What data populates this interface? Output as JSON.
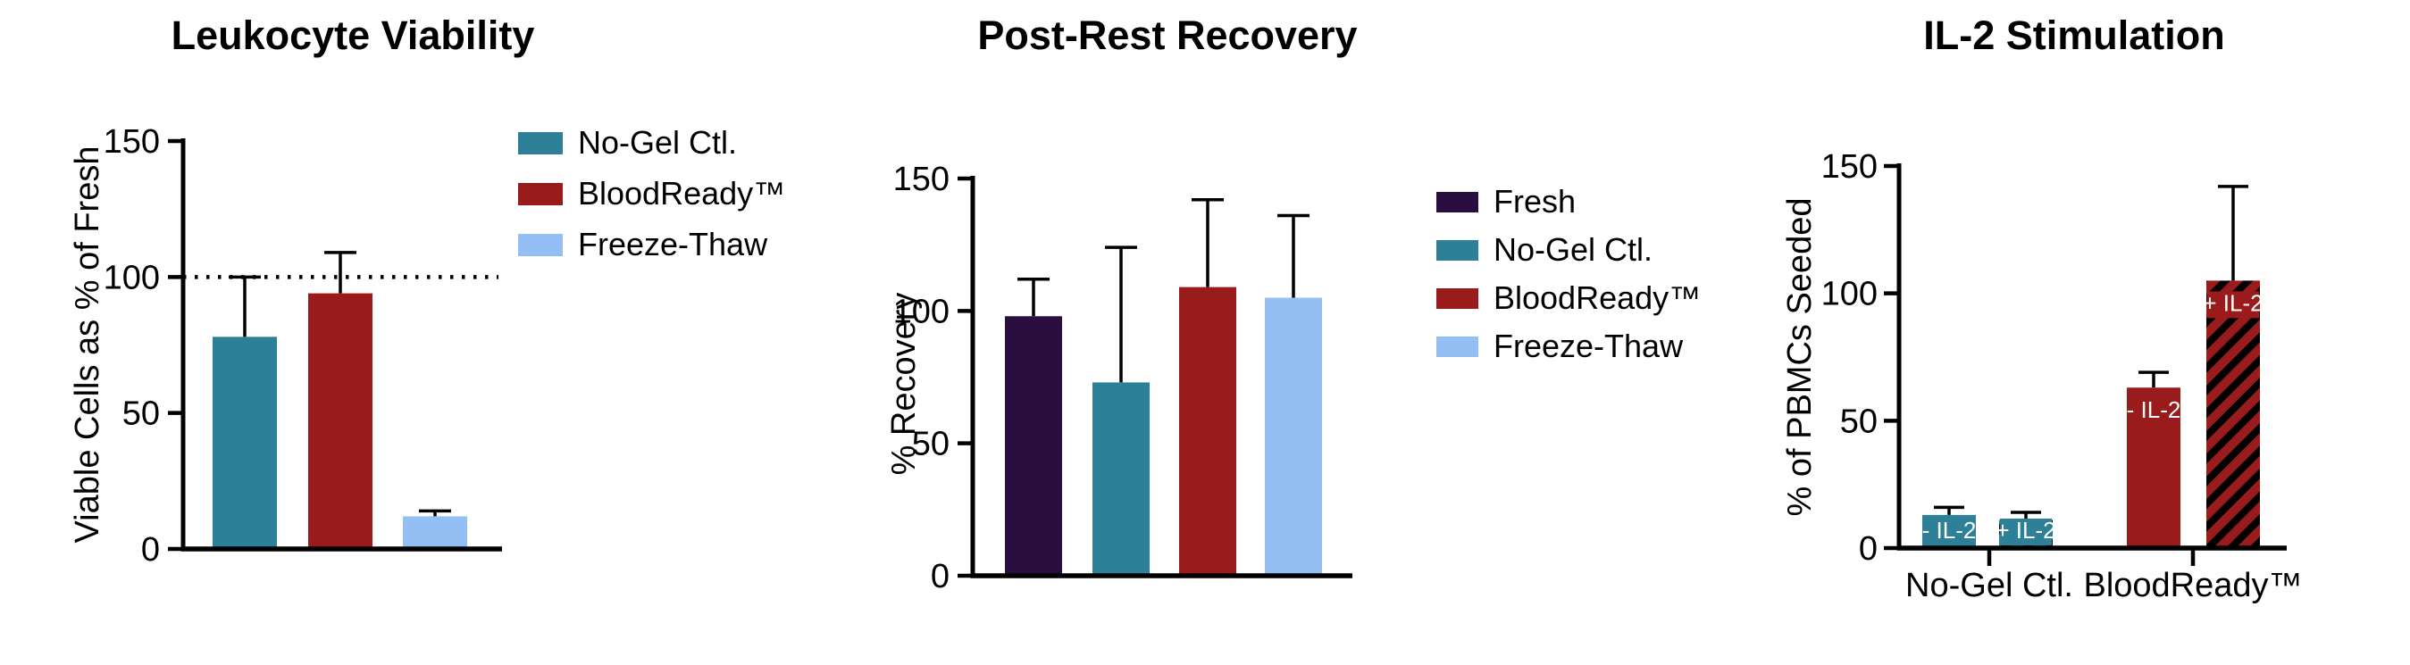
{
  "figure": {
    "background": "#ffffff"
  },
  "palette": {
    "teal": "#2e8099",
    "red": "#9a1b1b",
    "light_blue": "#93bff5",
    "purple": "#2a0e40",
    "axis_black": "#000000",
    "bar_label_text": "#ffffff"
  },
  "chart_data": [
    {
      "type": "bar",
      "title": "Leukocyte Viability",
      "ylabel": "Viable Cells as % of Fresh",
      "ylim": [
        0,
        150
      ],
      "yticks": [
        0,
        50,
        100,
        150
      ],
      "grid": false,
      "reference_line_y": 100,
      "categories": [
        "No-Gel Ctl.",
        "BloodReady™",
        "Freeze-Thaw"
      ],
      "bars": [
        {
          "label": "No-Gel Ctl.",
          "value": 78,
          "error_up": 22,
          "color": "teal",
          "hatch": false
        },
        {
          "label": "BloodReady™",
          "value": 94,
          "error_up": 15,
          "color": "red",
          "hatch": false
        },
        {
          "label": "Freeze-Thaw",
          "value": 12,
          "error_up": 2,
          "color": "light_blue",
          "hatch": false
        }
      ],
      "legend": [
        {
          "label": "No-Gel Ctl.",
          "color": "teal"
        },
        {
          "label": "BloodReady™",
          "color": "red"
        },
        {
          "label": "Freeze-Thaw",
          "color": "light_blue"
        }
      ],
      "legend_position": "right"
    },
    {
      "type": "bar",
      "title": "Post-Rest Recovery",
      "ylabel": "% Recovery",
      "ylim": [
        0,
        150
      ],
      "yticks": [
        0,
        50,
        100,
        150
      ],
      "grid": false,
      "categories": [
        "Fresh",
        "No-Gel Ctl.",
        "BloodReady™",
        "Freeze-Thaw"
      ],
      "bars": [
        {
          "label": "Fresh",
          "value": 98,
          "error_up": 14,
          "color": "purple",
          "hatch": false
        },
        {
          "label": "No-Gel Ctl.",
          "value": 73,
          "error_up": 51,
          "color": "teal",
          "hatch": false
        },
        {
          "label": "BloodReady™",
          "value": 109,
          "error_up": 33,
          "color": "red",
          "hatch": false
        },
        {
          "label": "Freeze-Thaw",
          "value": 105,
          "error_up": 31,
          "color": "light_blue",
          "hatch": false
        }
      ],
      "legend": [
        {
          "label": "Fresh",
          "color": "purple"
        },
        {
          "label": "No-Gel Ctl.",
          "color": "teal"
        },
        {
          "label": "BloodReady™",
          "color": "red"
        },
        {
          "label": "Freeze-Thaw",
          "color": "light_blue"
        }
      ],
      "legend_position": "right"
    },
    {
      "type": "bar",
      "title": "IL-2 Stimulation",
      "ylabel": "% of PBMCs Seeded",
      "ylim": [
        0,
        150
      ],
      "yticks": [
        0,
        50,
        100,
        150
      ],
      "grid": false,
      "groups": [
        "No-Gel Ctl.",
        "BloodReady™"
      ],
      "bars": [
        {
          "group": "No-Gel Ctl.",
          "bar_label": "- IL-2",
          "value": 13,
          "error_up": 3,
          "color": "teal",
          "hatch": false,
          "label_pos": "bottom"
        },
        {
          "group": "No-Gel Ctl.",
          "bar_label": "+ IL-2",
          "value": 11,
          "error_up": 3,
          "color": "teal",
          "hatch": true,
          "label_pos": "bottom"
        },
        {
          "group": "BloodReady™",
          "bar_label": "- IL-2",
          "value": 63,
          "error_up": 6,
          "color": "red",
          "hatch": false,
          "label_pos": "top"
        },
        {
          "group": "BloodReady™",
          "bar_label": "+ IL-2",
          "value": 105,
          "error_up": 37,
          "color": "red",
          "hatch": true,
          "label_pos": "top"
        }
      ]
    }
  ]
}
